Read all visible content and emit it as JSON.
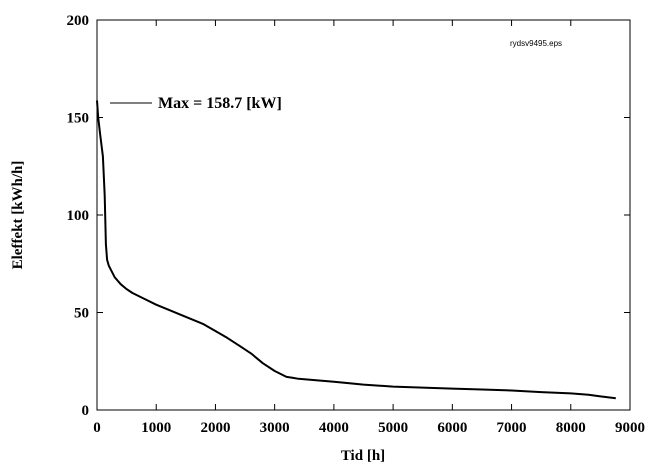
{
  "chart_data": {
    "type": "line",
    "title": "",
    "xlabel": "Tid [h]",
    "ylabel": "Eleffekt [kWh/h]",
    "xlim": [
      0,
      9000
    ],
    "ylim": [
      0,
      200
    ],
    "xticks": [
      0,
      1000,
      2000,
      3000,
      4000,
      5000,
      6000,
      7000,
      8000,
      9000
    ],
    "yticks": [
      0,
      50,
      100,
      150,
      200
    ],
    "grid": false,
    "legend": {
      "placement": "top-left",
      "entries": [
        "Max = 158.7 [kW]"
      ]
    },
    "annotation": "rydsv9495.eps",
    "series": [
      {
        "color": "#000000",
        "x": [
          0,
          20,
          50,
          100,
          130,
          150,
          170,
          200,
          300,
          400,
          500,
          600,
          800,
          1000,
          1200,
          1400,
          1600,
          1800,
          2000,
          2200,
          2400,
          2600,
          2800,
          3000,
          3200,
          3300,
          3400,
          3600,
          3800,
          4000,
          4500,
          5000,
          5500,
          6000,
          6500,
          7000,
          7500,
          8000,
          8300,
          8500,
          8760
        ],
        "y": [
          158.7,
          150,
          142,
          130,
          110,
          85,
          77,
          74,
          68,
          64.5,
          62,
          60,
          57,
          54,
          51.5,
          49,
          46.5,
          44,
          40.5,
          37,
          33,
          29,
          24,
          20,
          17,
          16.5,
          16,
          15.5,
          15,
          14.5,
          13,
          12,
          11.5,
          11,
          10.5,
          10,
          9.2,
          8.5,
          7.8,
          7,
          6
        ]
      }
    ]
  }
}
